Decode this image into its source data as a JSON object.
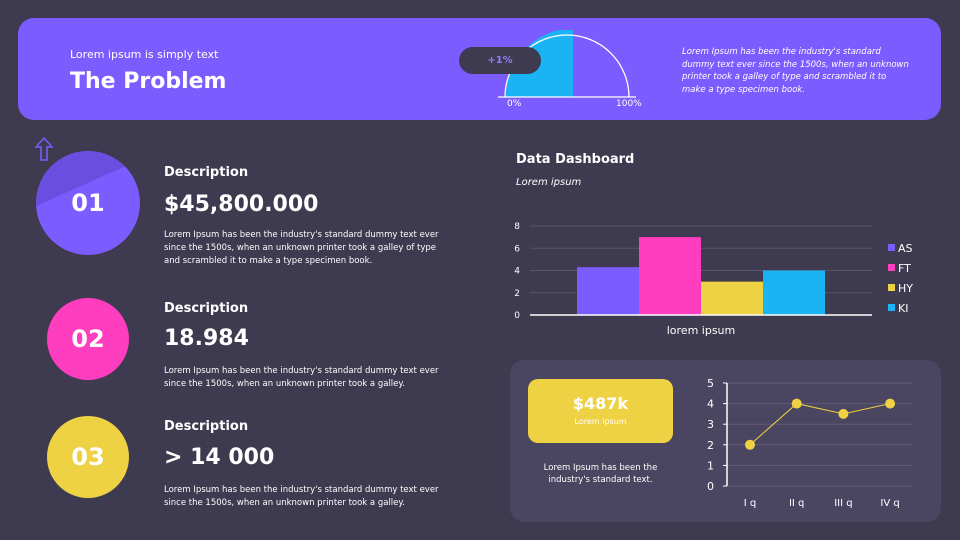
{
  "header": {
    "subtitle": "Lorem ipsum is simply text",
    "title": "The Problem",
    "gauge": {
      "badge": "+1%",
      "min_label": "0%",
      "max_label": "100%",
      "fill_percent": 50,
      "fill_color": "#1ab4f5"
    },
    "text": "Lorem Ipsum has been the industry's standard dummy text ever since the 1500s, when an unknown printer took a galley of type and scrambled it to make a type specimen book."
  },
  "colors": {
    "background": "#3e3a4f",
    "purple": "#7b5cff",
    "pink": "#ff3ebf",
    "yellow": "#efd243",
    "blue": "#1ab4f5"
  },
  "items": [
    {
      "number": "01",
      "label": "Description",
      "value": "$45,800.000",
      "text": "Lorem Ipsum has been the industry's standard dummy text ever since the 1500s, when an unknown printer took a galley of type and scrambled it to make a type specimen book.",
      "icon": "arrow-up-icon"
    },
    {
      "number": "02",
      "label": "Description",
      "value": "18.984",
      "text": "Lorem Ipsum has been the industry's standard dummy text ever since the 1500s, when an unknown printer took a galley."
    },
    {
      "number": "03",
      "label": "Description",
      "value": "> 14 000",
      "text": "Lorem Ipsum has been the industry's standard dummy text ever since the 1500s, when an unknown printer took a galley."
    }
  ],
  "dashboard": {
    "title": "Data Dashboard",
    "subtitle": "Lorem ipsum"
  },
  "kpi": {
    "value": "$487k",
    "label": "Lorem ipsum",
    "text": "Lorem Ipsum has been the industry's standard text."
  },
  "chart_data": [
    {
      "type": "bar",
      "categories": [
        "lorem ipsum"
      ],
      "series": [
        {
          "name": "AS",
          "values": [
            4.3
          ],
          "color": "#7b5cff"
        },
        {
          "name": "FT",
          "values": [
            7
          ],
          "color": "#ff3ebf"
        },
        {
          "name": "HY",
          "values": [
            3
          ],
          "color": "#efd243"
        },
        {
          "name": "KI",
          "values": [
            4
          ],
          "color": "#1ab4f5"
        }
      ],
      "ylim": [
        0,
        8
      ],
      "yticks": [
        "0",
        "2",
        "4",
        "6",
        "8"
      ],
      "grid": true,
      "legend": "right"
    },
    {
      "type": "line",
      "categories": [
        "I q",
        "II q",
        "III q",
        "IV q"
      ],
      "values": [
        2,
        4,
        3.5,
        4
      ],
      "ylim": [
        0,
        5
      ],
      "yticks": [
        "0",
        "1",
        "2",
        "3",
        "4",
        "5"
      ],
      "grid": true,
      "color": "#efd243"
    }
  ]
}
